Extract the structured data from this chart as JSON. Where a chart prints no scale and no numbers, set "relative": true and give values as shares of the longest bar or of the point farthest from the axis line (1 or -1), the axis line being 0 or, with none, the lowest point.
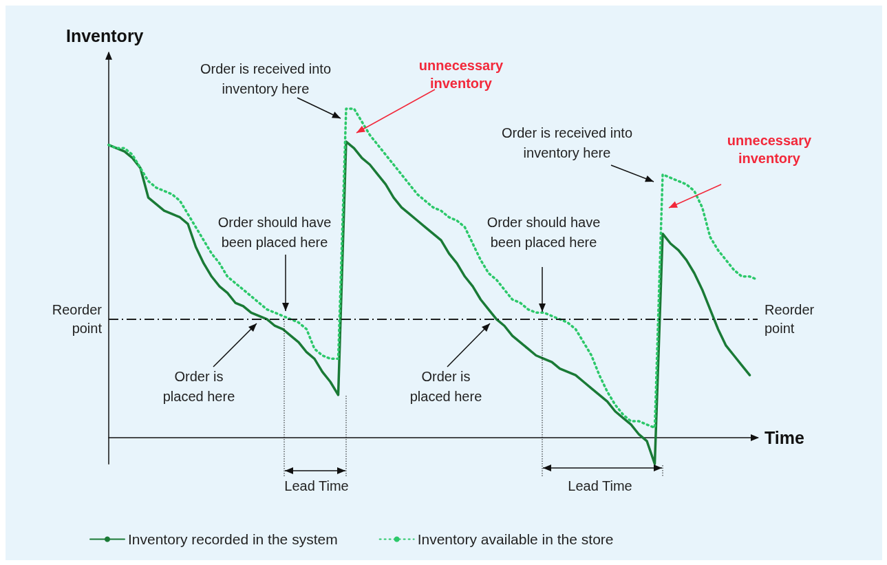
{
  "chart_data": {
    "type": "line",
    "relative": true,
    "xlabel": "Time",
    "ylabel": "Inventory",
    "categories": [
      null,
      null,
      null,
      null,
      null,
      null,
      null,
      null,
      null,
      null,
      null,
      null,
      null,
      null,
      null,
      null,
      null,
      null,
      null,
      null,
      null,
      null,
      null,
      null,
      null,
      null,
      null,
      null,
      null,
      null,
      null,
      null,
      null,
      null,
      null,
      null,
      null,
      null,
      null,
      null,
      null,
      null,
      null,
      null,
      null,
      null,
      null,
      null,
      null,
      null,
      null,
      null,
      null,
      null,
      null,
      null,
      null,
      null,
      null,
      null,
      null,
      null,
      null,
      null,
      null,
      null,
      null,
      null,
      null,
      null,
      null,
      null,
      null,
      null,
      null,
      null,
      null,
      null,
      null,
      null,
      null,
      null,
      null
    ],
    "series": [
      {
        "name": "Inventory recorded in the system",
        "color": "#1a7a36",
        "line_style": "solid",
        "values": [
          0.89,
          0.88,
          0.87,
          0.85,
          0.82,
          0.73,
          0.71,
          0.69,
          0.68,
          0.67,
          0.65,
          0.58,
          0.53,
          0.49,
          0.46,
          0.44,
          0.41,
          0.4,
          0.38,
          0.37,
          0.36,
          0.34,
          0.33,
          0.31,
          0.29,
          0.26,
          0.24,
          0.2,
          0.17,
          0.13,
          0.9,
          0.88,
          0.85,
          0.83,
          0.8,
          0.77,
          0.73,
          0.7,
          0.68,
          0.66,
          0.64,
          0.62,
          0.6,
          0.56,
          0.53,
          0.49,
          0.46,
          0.42,
          0.39,
          0.36,
          0.34,
          0.31,
          0.29,
          0.27,
          0.25,
          0.24,
          0.23,
          0.21,
          0.2,
          0.19,
          0.17,
          0.15,
          0.13,
          0.11,
          0.08,
          0.06,
          0.04,
          0.01,
          -0.01,
          -0.08,
          0.62,
          0.59,
          0.57,
          0.54,
          0.5,
          0.45,
          0.39,
          0.33,
          0.28,
          0.25,
          0.22,
          0.19,
          null
        ]
      },
      {
        "name": "Inventory available in the store",
        "color": "#2cc86a",
        "line_style": "dotted",
        "values": [
          0.89,
          0.88,
          0.88,
          0.86,
          0.82,
          0.78,
          0.76,
          0.75,
          0.74,
          0.72,
          0.68,
          0.64,
          0.6,
          0.56,
          0.53,
          0.49,
          0.47,
          0.45,
          0.43,
          0.41,
          0.39,
          0.38,
          0.37,
          0.36,
          0.35,
          0.33,
          0.27,
          0.25,
          0.24,
          0.24,
          1.0,
          1.0,
          0.96,
          0.92,
          0.89,
          0.86,
          0.83,
          0.8,
          0.77,
          0.74,
          0.72,
          0.7,
          0.69,
          0.67,
          0.66,
          0.64,
          0.59,
          0.54,
          0.5,
          0.48,
          0.45,
          0.42,
          0.41,
          0.39,
          0.38,
          0.38,
          0.37,
          0.36,
          0.35,
          0.33,
          0.29,
          0.25,
          0.19,
          0.14,
          0.1,
          0.07,
          0.05,
          0.05,
          0.04,
          0.03,
          0.8,
          0.79,
          0.78,
          0.77,
          0.75,
          0.7,
          0.61,
          0.57,
          0.54,
          0.51,
          0.49,
          0.49,
          0.48
        ]
      }
    ],
    "ref_lines": [
      {
        "axis": "y",
        "value": 0.36,
        "label": "Reorder\npoint",
        "line_style": "dashed"
      }
    ],
    "annotations": [
      "Order is received into\ninventory here",
      "unnecessary\ninventory",
      "Order is received into\ninventory here",
      "unnecessary\ninventory",
      "Order should have\nbeen placed here",
      "Order should have\nbeen placed here",
      "Order is\nplaced here",
      "Order is\nplaced here",
      "Lead Time",
      "Lead Time"
    ],
    "legend": "bottom",
    "grid": false,
    "marker": "none"
  }
}
